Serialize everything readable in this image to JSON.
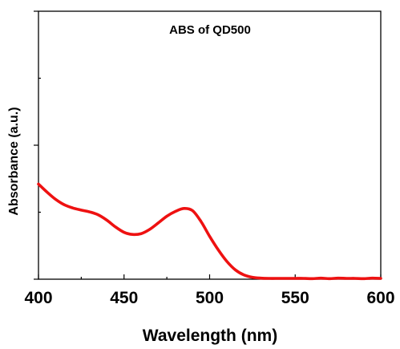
{
  "chart_data": {
    "type": "line",
    "title": "ABS of QD500",
    "xlabel": "Wavelength (nm)",
    "ylabel": "Absorbance (a.u.)",
    "xlim": [
      400,
      600
    ],
    "ylim": [
      0,
      1
    ],
    "x_ticks": [
      400,
      450,
      500,
      550,
      600
    ],
    "y_ticks_labeled": false,
    "grid": false,
    "legend": "none",
    "series": [
      {
        "color": "#ee1111",
        "x": [
          400,
          405,
          410,
          415,
          420,
          425,
          430,
          435,
          440,
          445,
          450,
          455,
          460,
          465,
          470,
          475,
          480,
          485,
          490,
          495,
          500,
          505,
          510,
          515,
          520,
          525,
          530,
          535,
          540,
          545,
          550,
          555,
          560,
          565,
          570,
          575,
          580,
          585,
          590,
          595,
          600
        ],
        "y": [
          0.355,
          0.325,
          0.298,
          0.278,
          0.266,
          0.258,
          0.251,
          0.24,
          0.22,
          0.195,
          0.175,
          0.167,
          0.17,
          0.186,
          0.21,
          0.235,
          0.253,
          0.264,
          0.256,
          0.215,
          0.16,
          0.11,
          0.067,
          0.035,
          0.016,
          0.007,
          0.004,
          0.003,
          0.003,
          0.003,
          0.003,
          0.003,
          0.002,
          0.004,
          0.002,
          0.004,
          0.003,
          0.003,
          0.002,
          0.004,
          0.003
        ]
      }
    ]
  }
}
